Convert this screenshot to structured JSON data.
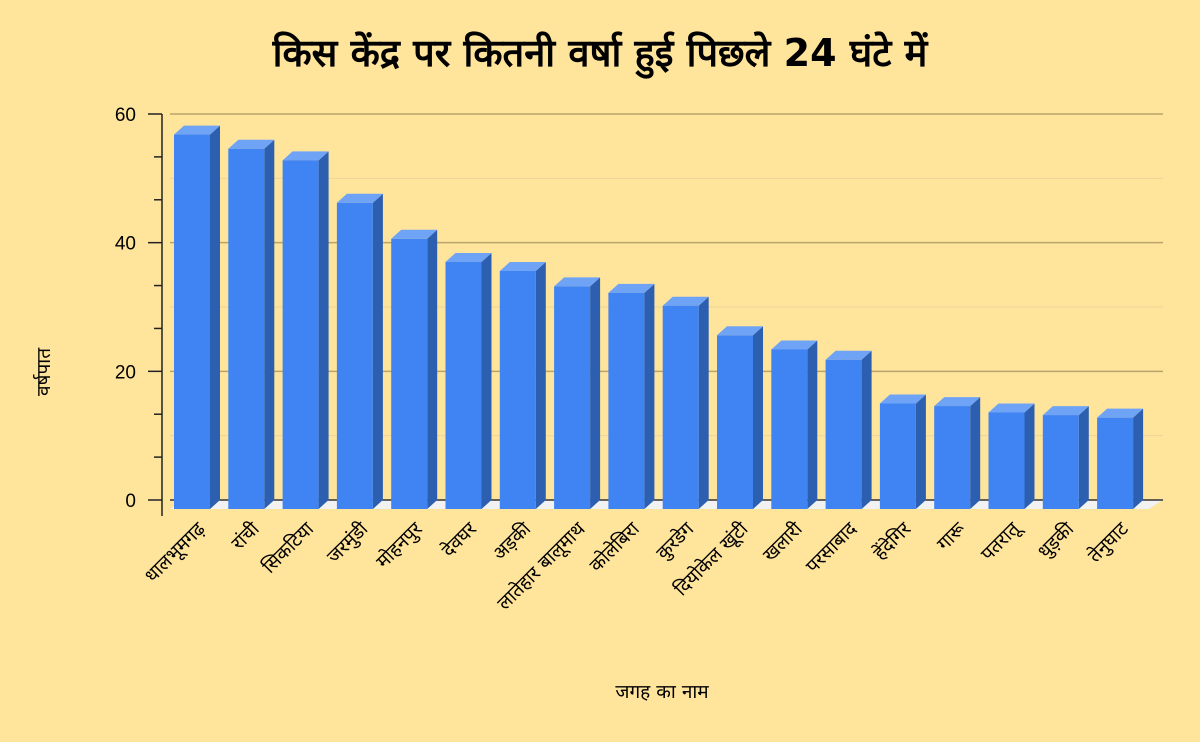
{
  "chart_data": {
    "type": "bar",
    "title": "किस केंद्र पर कितनी वर्षा हुई पिछले 24 घंटे में",
    "xlabel": "जगह का नाम",
    "ylabel": "वर्षपात",
    "ylim": [
      0,
      60
    ],
    "yticks": [
      0,
      20,
      40,
      60
    ],
    "grid": true,
    "legend": "none",
    "bar_color": "#3F84F2",
    "bar_side_color": "#2C5FB0",
    "bar_top_color": "#6FA3F5",
    "categories": [
      "धालभूमगढ़",
      "रांची",
      "सिकटिया",
      "जरमुंडी",
      "मोहनपुर",
      "देवघर",
      "अड़की",
      "लातेहार बालूमाथ",
      "कोलेबिरा",
      "कुरडेग",
      "दियोकेल खूंटी",
      "खलारी",
      "परसाबाद",
      "हेंदेगिर",
      "गारू",
      "पतरातू",
      "धुड़की",
      "तेनुघाट"
    ],
    "values": [
      56.8,
      54.6,
      52.8,
      46.2,
      40.6,
      37.0,
      35.6,
      33.2,
      32.2,
      30.2,
      25.6,
      23.4,
      21.8,
      15.0,
      14.6,
      13.6,
      13.2,
      12.8
    ]
  }
}
